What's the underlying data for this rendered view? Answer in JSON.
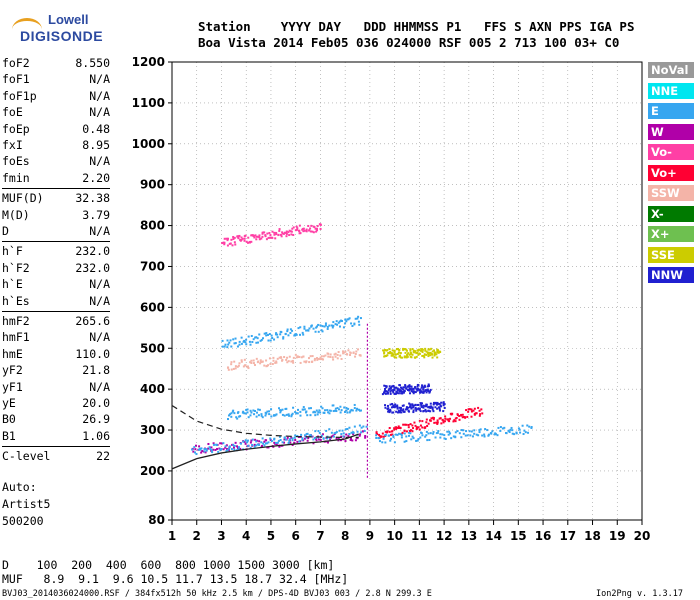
{
  "logo": {
    "line1": "Lowell",
    "line2": "DIGISONDE"
  },
  "header": {
    "row1": "Station    YYYY DAY   DDD HHMMSS P1   FFS S AXN PPS IGA PS",
    "row2": "Boa Vista 2014 Feb05 036 024000 RSF 005 2 713 100 03+ C0"
  },
  "params": [
    {
      "k": "foF2",
      "v": "8.550"
    },
    {
      "k": "foF1",
      "v": "N/A"
    },
    {
      "k": "foF1p",
      "v": "N/A"
    },
    {
      "k": "foE",
      "v": "N/A"
    },
    {
      "k": "foEp",
      "v": "0.48"
    },
    {
      "k": "fxI",
      "v": "8.95"
    },
    {
      "k": "foEs",
      "v": "N/A"
    },
    {
      "k": "fmin",
      "v": "2.20"
    },
    {
      "k": "MUF(D)",
      "v": "32.38"
    },
    {
      "k": "M(D)",
      "v": "3.79"
    },
    {
      "k": "D",
      "v": "N/A"
    },
    {
      "k": "h`F",
      "v": "232.0"
    },
    {
      "k": "h`F2",
      "v": "232.0"
    },
    {
      "k": "h`E",
      "v": "N/A"
    },
    {
      "k": "h`Es",
      "v": "N/A"
    },
    {
      "k": "hmF2",
      "v": "265.6"
    },
    {
      "k": "hmF1",
      "v": "N/A"
    },
    {
      "k": "hmE",
      "v": "110.0"
    },
    {
      "k": "yF2",
      "v": "21.8"
    },
    {
      "k": "yF1",
      "v": "N/A"
    },
    {
      "k": "yE",
      "v": "20.0"
    },
    {
      "k": "B0",
      "v": "26.9"
    },
    {
      "k": "B1",
      "v": "1.06"
    },
    {
      "k": "C-level",
      "v": "22"
    }
  ],
  "auto": {
    "line1": "Auto:",
    "line2": "Artist5",
    "line3": "500200"
  },
  "legend": [
    {
      "label": "NoVal",
      "color": "#999999"
    },
    {
      "label": "NNE",
      "color": "#00e6f0"
    },
    {
      "label": "E",
      "color": "#36a6f0"
    },
    {
      "label": "W",
      "color": "#b000a8"
    },
    {
      "label": "Vo-",
      "color": "#ff3fa5"
    },
    {
      "label": "Vo+",
      "color": "#ff0033"
    },
    {
      "label": "SSW",
      "color": "#f4b4a8"
    },
    {
      "label": "X-",
      "color": "#007a00"
    },
    {
      "label": "X+",
      "color": "#6ec050"
    },
    {
      "label": "SSE",
      "color": "#cccc00"
    },
    {
      "label": "NNW",
      "color": "#2020d0"
    }
  ],
  "bottom": {
    "d_row": "D    100  200  400  600  800 1000 1500 3000 [km]",
    "muf_row": "MUF   8.9  9.1  9.6 10.5 11.7 13.5 18.7 32.4 [MHz]"
  },
  "footer": {
    "left": "BVJ03_2014036024000.RSF / 384fx512h 50 kHz 2.5 km / DPS-4D BVJ03 003 / 2.8 N 299.3 E",
    "right": "Ion2Png v. 1.3.17"
  },
  "chart_data": {
    "type": "scatter",
    "x_range": [
      1,
      20
    ],
    "y_range": [
      80,
      1200
    ],
    "x_ticks": [
      1,
      2,
      3,
      4,
      5,
      6,
      7,
      8,
      9,
      10,
      11,
      12,
      13,
      14,
      15,
      16,
      17,
      18,
      19,
      20
    ],
    "y_ticks": [
      80,
      200,
      300,
      400,
      500,
      600,
      700,
      800,
      900,
      1000,
      1100,
      1200
    ],
    "y_tick_labels": [
      "80",
      "200",
      "300",
      "400",
      "500",
      "600",
      "700",
      "800",
      "900",
      "1000",
      "1100",
      "1200"
    ],
    "traces": [
      {
        "color": "#b000a8",
        "x": [
          1.8,
          8.8
        ],
        "y": [
          255,
          290
        ]
      },
      {
        "color": "#36a6f0",
        "x": [
          1.8,
          8.8
        ],
        "y": [
          250,
          305
        ]
      },
      {
        "color": "#ff0033",
        "x": [
          9.2,
          13.5
        ],
        "y": [
          290,
          350
        ]
      },
      {
        "color": "#36a6f0",
        "x": [
          9.2,
          15.5
        ],
        "y": [
          280,
          305
        ]
      },
      {
        "color": "#36a6f0",
        "x": [
          3.2,
          8.6
        ],
        "y": [
          340,
          355
        ]
      },
      {
        "color": "#2020d0",
        "x": [
          9.6,
          12.0
        ],
        "y": [
          355,
          360
        ]
      },
      {
        "color": "#2020d0",
        "x": [
          9.5,
          11.4
        ],
        "y": [
          400,
          405
        ]
      },
      {
        "color": "#cccc00",
        "x": [
          9.5,
          11.8
        ],
        "y": [
          490,
          490
        ]
      },
      {
        "color": "#36a6f0",
        "x": [
          3.0,
          8.6
        ],
        "y": [
          510,
          570
        ]
      },
      {
        "color": "#f4b4a8",
        "x": [
          3.2,
          8.6
        ],
        "y": [
          460,
          490
        ]
      },
      {
        "color": "#ff3fa5",
        "x": [
          3.0,
          7.0
        ],
        "y": [
          760,
          800
        ]
      }
    ],
    "profile_curve": {
      "x": [
        1,
        2,
        3,
        4,
        5,
        6,
        7,
        8,
        8.55
      ],
      "y": [
        205,
        230,
        244,
        253,
        260,
        266,
        271,
        278,
        290
      ]
    },
    "dashed_curve": {
      "x": [
        1,
        2,
        3,
        4,
        5,
        6,
        7,
        8,
        8.55
      ],
      "y": [
        360,
        322,
        302,
        292,
        287,
        284,
        283,
        282,
        282
      ]
    },
    "vertical_line_x": 8.9
  }
}
